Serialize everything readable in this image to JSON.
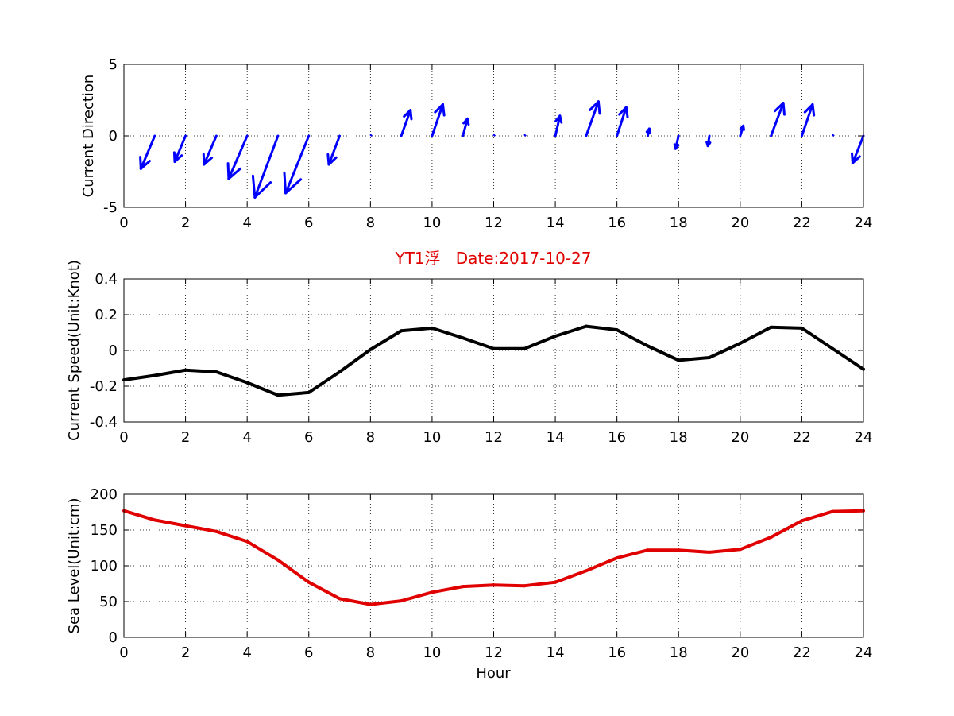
{
  "title": "YT1浮   Date:2017-10-27",
  "colors": {
    "title": "#e00000",
    "vectors": "#0000ff",
    "speed": "#000000",
    "level": "#e00000"
  },
  "chart_data": [
    {
      "type": "quiver",
      "ylabel": "Current Direction",
      "xlim": [
        0,
        24
      ],
      "ylim": [
        -5,
        5
      ],
      "xticks": [
        "0",
        "2",
        "4",
        "6",
        "8",
        "10",
        "12",
        "14",
        "16",
        "18",
        "20",
        "22",
        "24"
      ],
      "yticks": [
        "-5",
        "0",
        "5"
      ],
      "grid": true,
      "x": [
        1,
        2,
        3,
        4,
        5,
        6,
        7,
        8,
        9,
        10,
        11,
        12,
        13,
        14,
        15,
        16,
        17,
        18,
        19,
        20,
        21,
        22,
        23,
        24
      ],
      "u": [
        -0.45,
        -0.35,
        -0.4,
        -0.6,
        -0.75,
        -0.75,
        -0.35,
        0,
        0.3,
        0.35,
        0.15,
        0,
        0,
        0.15,
        0.4,
        0.3,
        0.05,
        -0.1,
        -0.05,
        0.1,
        0.4,
        0.35,
        0,
        -0.35
      ],
      "v": [
        -2.3,
        -1.8,
        -2.0,
        -3.0,
        -4.3,
        -4.0,
        -2.0,
        0.1,
        1.8,
        2.2,
        1.2,
        0.1,
        0.1,
        1.4,
        2.4,
        2.0,
        0.5,
        -0.9,
        -0.7,
        0.7,
        2.3,
        2.2,
        0.1,
        -1.9
      ]
    },
    {
      "type": "line",
      "ylabel": "Current Speed(Unit:Knot)",
      "xlim": [
        0,
        24
      ],
      "ylim": [
        -0.4,
        0.4
      ],
      "xticks": [
        "0",
        "2",
        "4",
        "6",
        "8",
        "10",
        "12",
        "14",
        "16",
        "18",
        "20",
        "22",
        "24"
      ],
      "yticks": [
        "-0.4",
        "-0.2",
        "0",
        "0.2",
        "0.4"
      ],
      "grid": true,
      "x": [
        0,
        1,
        2,
        3,
        4,
        5,
        6,
        7,
        8,
        9,
        10,
        11,
        12,
        13,
        14,
        15,
        16,
        17,
        18,
        19,
        20,
        21,
        22,
        23,
        24
      ],
      "values": [
        -0.165,
        -0.14,
        -0.11,
        -0.12,
        -0.18,
        -0.25,
        -0.235,
        -0.12,
        0.005,
        0.11,
        0.125,
        0.07,
        0.01,
        0.01,
        0.08,
        0.135,
        0.115,
        0.025,
        -0.055,
        -0.04,
        0.04,
        0.13,
        0.125,
        0.01,
        -0.105
      ]
    },
    {
      "type": "line",
      "ylabel": "Sea Level(Unit:cm)",
      "xlabel": "Hour",
      "xlim": [
        0,
        24
      ],
      "ylim": [
        0,
        200
      ],
      "xticks": [
        "0",
        "2",
        "4",
        "6",
        "8",
        "10",
        "12",
        "14",
        "16",
        "18",
        "20",
        "22",
        "24"
      ],
      "yticks": [
        "0",
        "50",
        "100",
        "150",
        "200"
      ],
      "grid": true,
      "x": [
        0,
        1,
        2,
        3,
        4,
        5,
        6,
        7,
        8,
        9,
        10,
        11,
        12,
        13,
        14,
        15,
        16,
        17,
        18,
        19,
        20,
        21,
        22,
        23,
        24
      ],
      "values": [
        177,
        164,
        156,
        148,
        134,
        108,
        77,
        54,
        46,
        51,
        63,
        71,
        73,
        72,
        77,
        93,
        111,
        122,
        122,
        119,
        123,
        140,
        163,
        176,
        177
      ]
    }
  ]
}
